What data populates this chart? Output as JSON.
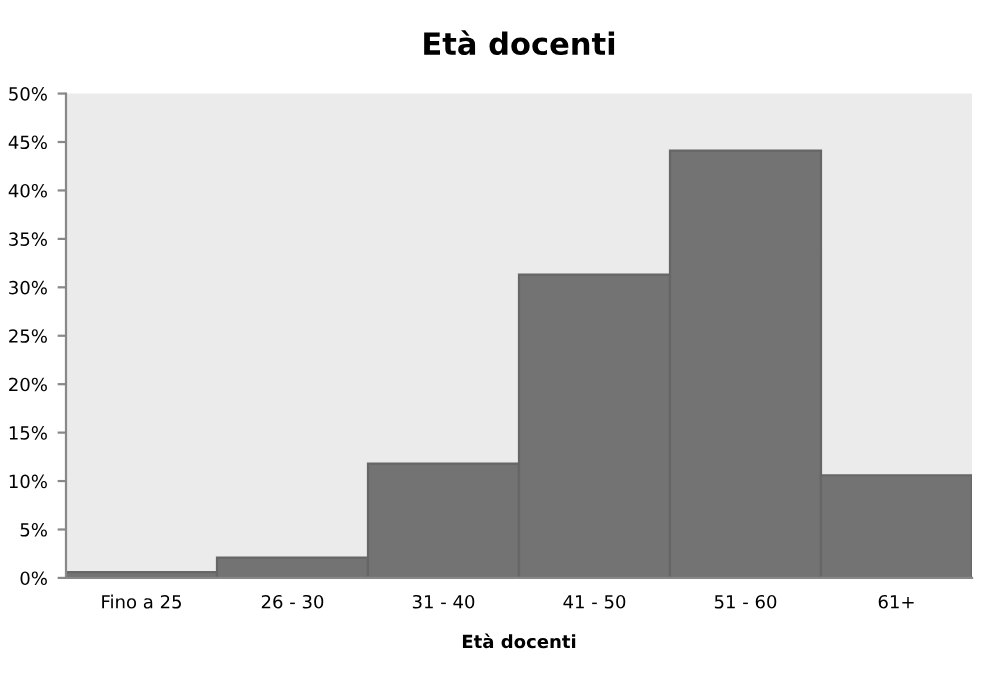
{
  "chart_data": {
    "type": "bar",
    "title": "Età docenti",
    "xlabel": "Età docenti",
    "categories": [
      "Fino a 25",
      "26 - 30",
      "31 - 40",
      "41 - 50",
      "51 - 60",
      "61+"
    ],
    "values": [
      0.6,
      2.1,
      11.8,
      31.3,
      44.1,
      10.6
    ],
    "color": "#737373",
    "ylim": [
      0,
      50
    ],
    "yticks": [
      {
        "value": 0,
        "label": "0%"
      },
      {
        "value": 5,
        "label": "5%"
      },
      {
        "value": 10,
        "label": "10%"
      },
      {
        "value": 15,
        "label": "15%"
      },
      {
        "value": 20,
        "label": "20%"
      },
      {
        "value": 25,
        "label": "25%"
      },
      {
        "value": 30,
        "label": "30%"
      },
      {
        "value": 35,
        "label": "35%"
      },
      {
        "value": 40,
        "label": "40%"
      },
      {
        "value": 45,
        "label": "45%"
      },
      {
        "value": 50,
        "label": "50%"
      }
    ],
    "grid": false,
    "legend": false
  }
}
